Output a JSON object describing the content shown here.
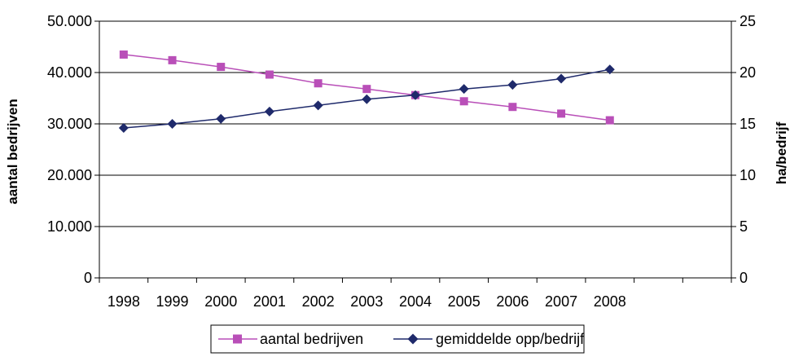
{
  "chart_data": {
    "type": "line",
    "categories": [
      "1998",
      "1999",
      "2000",
      "2001",
      "2002",
      "2003",
      "2004",
      "2005",
      "2006",
      "2007",
      "2008"
    ],
    "series": [
      {
        "name": "aantal bedrijven",
        "axis": "left",
        "color": "#b94fb8",
        "marker": "square",
        "values": [
          43500,
          42400,
          41100,
          39600,
          37900,
          36800,
          35600,
          34400,
          33300,
          32000,
          30700
        ]
      },
      {
        "name": "gemiddelde opp/bedrijf",
        "axis": "right",
        "color": "#1f2a6b",
        "marker": "diamond",
        "values": [
          14.6,
          15.0,
          15.5,
          16.2,
          16.8,
          17.4,
          17.8,
          18.4,
          18.8,
          19.4,
          20.3
        ]
      }
    ],
    "ylabel_left": "aantal bedrijven",
    "ylabel_right": "ha/bedrijf",
    "ylim_left": [
      0,
      50000
    ],
    "ylim_right": [
      0,
      25
    ],
    "yticks_left": [
      "0",
      "10.000",
      "20.000",
      "30.000",
      "40.000",
      "50.000"
    ],
    "yticks_right": [
      "0",
      "5",
      "10",
      "15",
      "20",
      "25"
    ],
    "grid": true,
    "legend": "bottom"
  }
}
